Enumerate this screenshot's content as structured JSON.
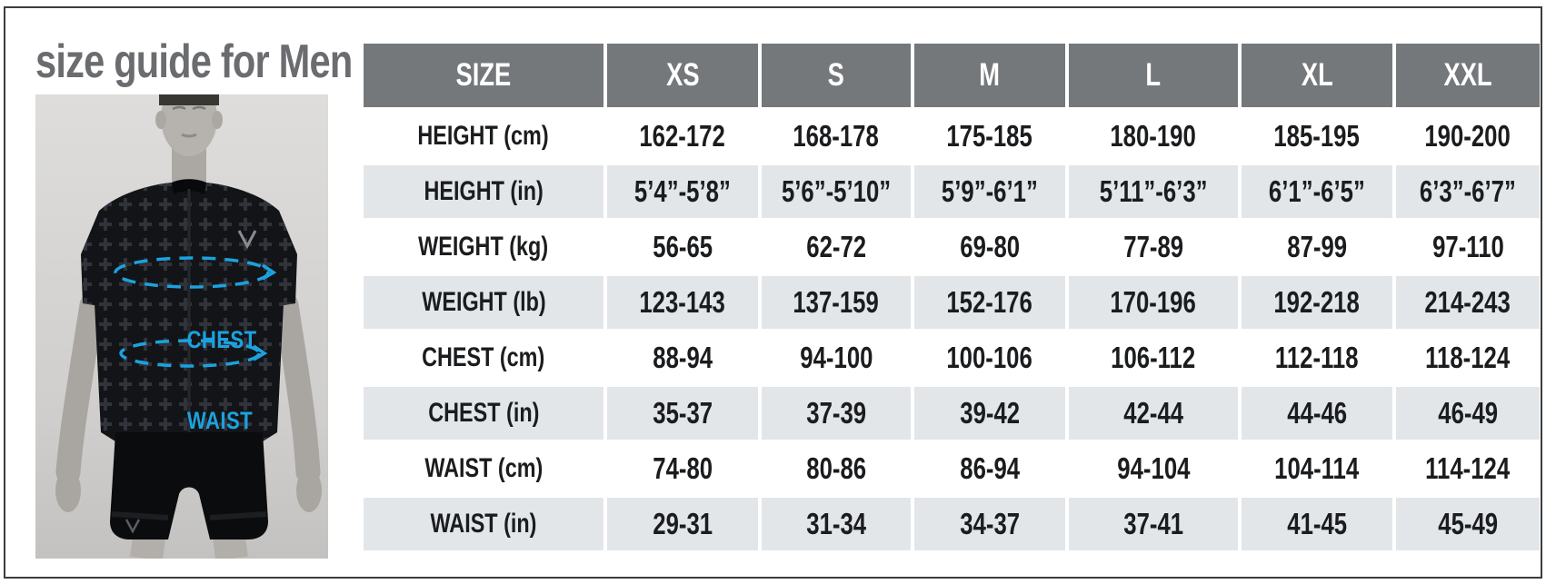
{
  "title": "size guide for Men",
  "figure": {
    "chest_label": "CHEST",
    "waist_label": "WAIST"
  },
  "colors": {
    "accent_cyan": "#1BA2DF",
    "header_bg": "#75787B",
    "row_alt_bg": "#E3E6E9",
    "title_gray": "#6A6C6F",
    "text_dark": "#1B1C1E"
  },
  "chart_data": {
    "type": "table",
    "title": "size guide for Men",
    "columns": [
      "SIZE",
      "XS",
      "S",
      "M",
      "L",
      "XL",
      "XXL"
    ],
    "rows": [
      {
        "label": "HEIGHT (cm)",
        "values": [
          "162-172",
          "168-178",
          "175-185",
          "180-190",
          "185-195",
          "190-200"
        ]
      },
      {
        "label": "HEIGHT (in)",
        "values": [
          "5’4”-5’8”",
          "5’6”-5’10”",
          "5’9”-6’1”",
          "5’11”-6’3”",
          "6’1”-6’5”",
          "6’3”-6’7”"
        ]
      },
      {
        "label": "WEIGHT (kg)",
        "values": [
          "56-65",
          "62-72",
          "69-80",
          "77-89",
          "87-99",
          "97-110"
        ]
      },
      {
        "label": "WEIGHT (lb)",
        "values": [
          "123-143",
          "137-159",
          "152-176",
          "170-196",
          "192-218",
          "214-243"
        ]
      },
      {
        "label": "CHEST (cm)",
        "values": [
          "88-94",
          "94-100",
          "100-106",
          "106-112",
          "112-118",
          "118-124"
        ]
      },
      {
        "label": "CHEST (in)",
        "values": [
          "35-37",
          "37-39",
          "39-42",
          "42-44",
          "44-46",
          "46-49"
        ]
      },
      {
        "label": "WAIST (cm)",
        "values": [
          "74-80",
          "80-86",
          "86-94",
          "94-104",
          "104-114",
          "114-124"
        ]
      },
      {
        "label": "WAIST (in)",
        "values": [
          "29-31",
          "31-34",
          "34-37",
          "37-41",
          "41-45",
          "45-49"
        ]
      }
    ]
  }
}
